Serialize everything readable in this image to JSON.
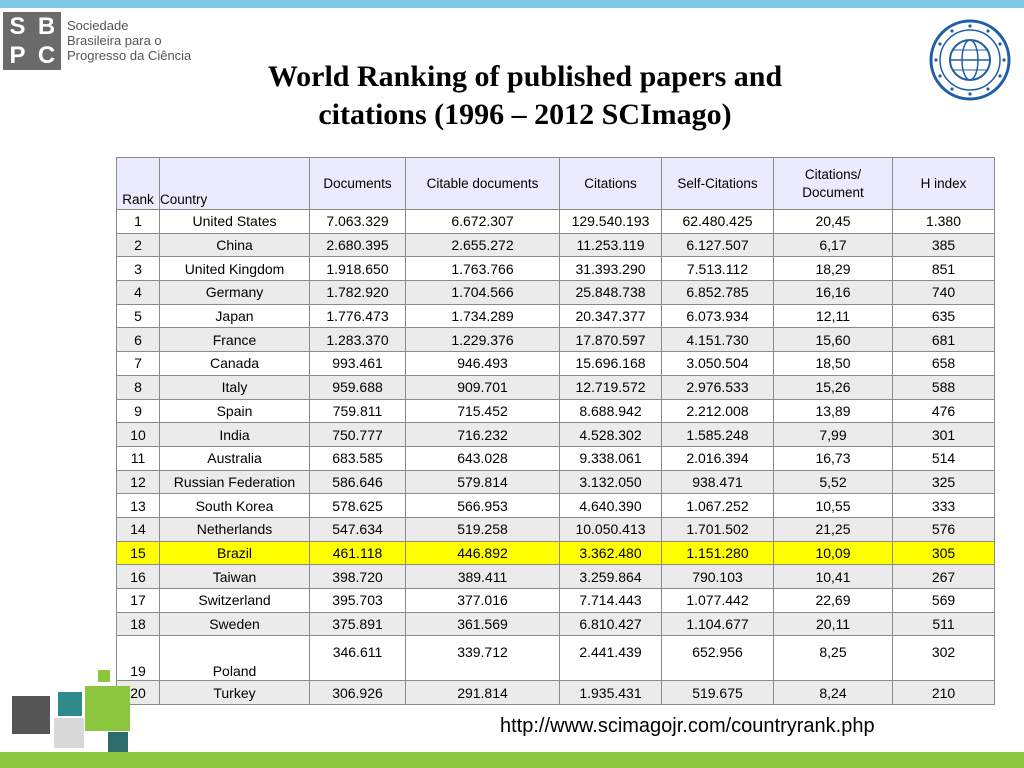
{
  "logo": {
    "letters": [
      "S",
      "B",
      "P",
      "C"
    ],
    "lines": [
      "Sociedade",
      "Brasileira para o",
      "Progresso da Ciência"
    ]
  },
  "seal": {
    "icon": "china-association-science-technology-seal-icon"
  },
  "title": {
    "line1": "World Ranking of published papers and",
    "line2": "citations (1996 – 2012 SCImago)"
  },
  "table": {
    "headers": {
      "rank": "Rank",
      "country": "Country",
      "documents": "Documents",
      "citable": "Citable documents",
      "citations": "Citations",
      "self_citations": "Self-Citations",
      "cit_per_doc_1": "Citations/",
      "cit_per_doc_2": "Document",
      "h_index": "H index"
    },
    "rows": [
      {
        "rank": "1",
        "country": "United States",
        "documents": "7.063.329",
        "citable": "6.672.307",
        "citations": "129.540.193",
        "self": "62.480.425",
        "cpd": "20,45",
        "h": "1.380"
      },
      {
        "rank": "2",
        "country": "China",
        "documents": "2.680.395",
        "citable": "2.655.272",
        "citations": "11.253.119",
        "self": "6.127.507",
        "cpd": "6,17",
        "h": "385"
      },
      {
        "rank": "3",
        "country": "United Kingdom",
        "documents": "1.918.650",
        "citable": "1.763.766",
        "citations": "31.393.290",
        "self": "7.513.112",
        "cpd": "18,29",
        "h": "851"
      },
      {
        "rank": "4",
        "country": "Germany",
        "documents": "1.782.920",
        "citable": "1.704.566",
        "citations": "25.848.738",
        "self": "6.852.785",
        "cpd": "16,16",
        "h": "740"
      },
      {
        "rank": "5",
        "country": "Japan",
        "documents": "1.776.473",
        "citable": "1.734.289",
        "citations": "20.347.377",
        "self": "6.073.934",
        "cpd": "12,11",
        "h": "635"
      },
      {
        "rank": "6",
        "country": "France",
        "documents": "1.283.370",
        "citable": "1.229.376",
        "citations": "17.870.597",
        "self": "4.151.730",
        "cpd": "15,60",
        "h": "681"
      },
      {
        "rank": "7",
        "country": "Canada",
        "documents": "993.461",
        "citable": "946.493",
        "citations": "15.696.168",
        "self": "3.050.504",
        "cpd": "18,50",
        "h": "658"
      },
      {
        "rank": "8",
        "country": "Italy",
        "documents": "959.688",
        "citable": "909.701",
        "citations": "12.719.572",
        "self": "2.976.533",
        "cpd": "15,26",
        "h": "588"
      },
      {
        "rank": "9",
        "country": "Spain",
        "documents": "759.811",
        "citable": "715.452",
        "citations": "8.688.942",
        "self": "2.212.008",
        "cpd": "13,89",
        "h": "476"
      },
      {
        "rank": "10",
        "country": "India",
        "documents": "750.777",
        "citable": "716.232",
        "citations": "4.528.302",
        "self": "1.585.248",
        "cpd": "7,99",
        "h": "301"
      },
      {
        "rank": "11",
        "country": "Australia",
        "documents": "683.585",
        "citable": "643.028",
        "citations": "9.338.061",
        "self": "2.016.394",
        "cpd": "16,73",
        "h": "514"
      },
      {
        "rank": "12",
        "country": "Russian Federation",
        "documents": "586.646",
        "citable": "579.814",
        "citations": "3.132.050",
        "self": "938.471",
        "cpd": "5,52",
        "h": "325"
      },
      {
        "rank": "13",
        "country": "South Korea",
        "documents": "578.625",
        "citable": "566.953",
        "citations": "4.640.390",
        "self": "1.067.252",
        "cpd": "10,55",
        "h": "333"
      },
      {
        "rank": "14",
        "country": "Netherlands",
        "documents": "547.634",
        "citable": "519.258",
        "citations": "10.050.413",
        "self": "1.701.502",
        "cpd": "21,25",
        "h": "576"
      },
      {
        "rank": "15",
        "country": "Brazil",
        "documents": "461.118",
        "citable": "446.892",
        "citations": "3.362.480",
        "self": "1.151.280",
        "cpd": "10,09",
        "h": "305"
      },
      {
        "rank": "16",
        "country": "Taiwan",
        "documents": "398.720",
        "citable": "389.411",
        "citations": "3.259.864",
        "self": "790.103",
        "cpd": "10,41",
        "h": "267"
      },
      {
        "rank": "17",
        "country": "Switzerland",
        "documents": "395.703",
        "citable": "377.016",
        "citations": "7.714.443",
        "self": "1.077.442",
        "cpd": "22,69",
        "h": "569"
      },
      {
        "rank": "18",
        "country": "Sweden",
        "documents": "375.891",
        "citable": "361.569",
        "citations": "6.810.427",
        "self": "1.104.677",
        "cpd": "20,11",
        "h": "511"
      },
      {
        "rank": "19",
        "country": "Poland",
        "documents": "346.611",
        "citable": "339.712",
        "citations": "2.441.439",
        "self": "652.956",
        "cpd": "8,25",
        "h": "302"
      },
      {
        "rank": "20",
        "country": "Turkey",
        "documents": "306.926",
        "citable": "291.814",
        "citations": "1.935.431",
        "self": "519.675",
        "cpd": "8,24",
        "h": "210"
      }
    ],
    "highlight_rank": "15",
    "highlight_color": "#ffff00",
    "accent_color": "#cc0000"
  },
  "source_url": "http://www.scimagojr.com/countryrank.php"
}
